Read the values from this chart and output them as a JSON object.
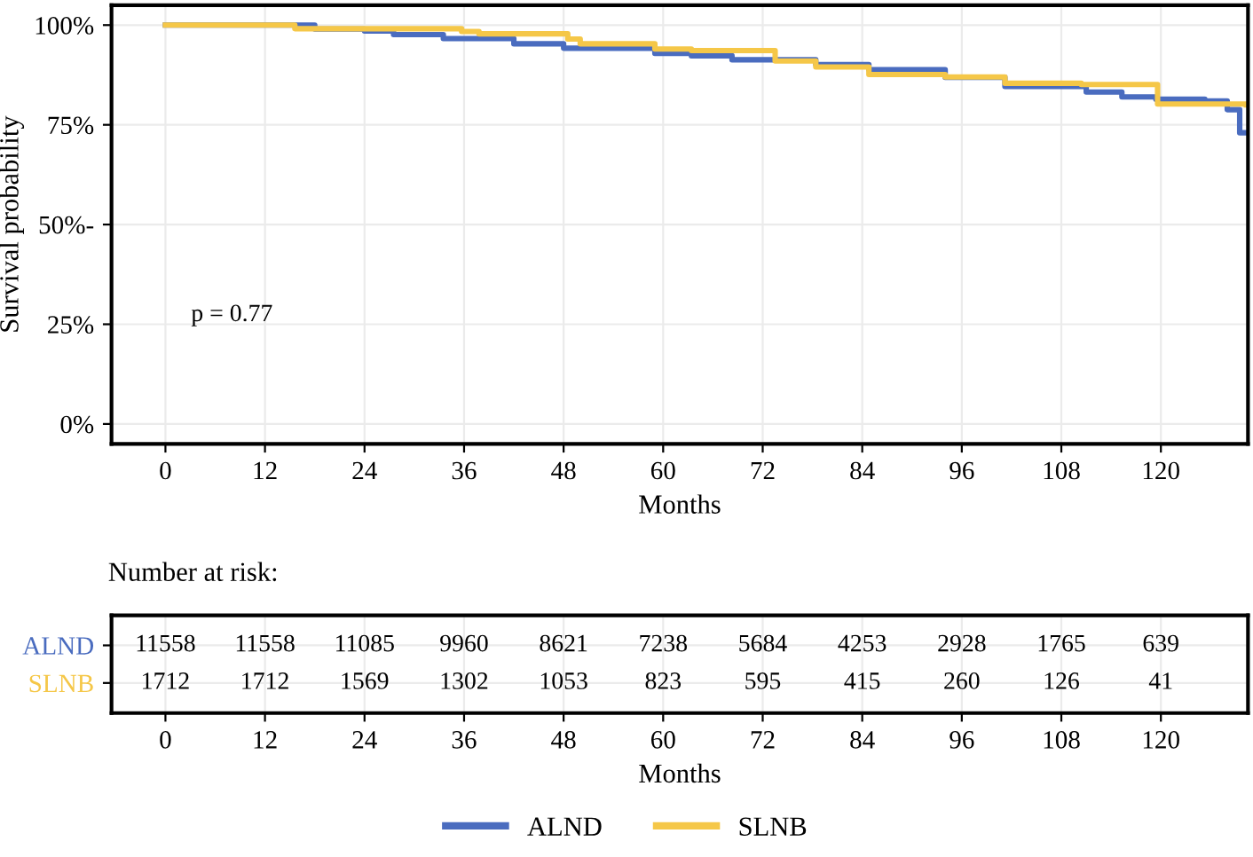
{
  "chart_data": [
    {
      "type": "step",
      "ylabel": "Survival probability",
      "xlabel": "Months",
      "xlim": [
        -6.5,
        130.5
      ],
      "xticks": [
        0,
        12,
        24,
        36,
        48,
        60,
        72,
        84,
        96,
        108,
        120
      ],
      "ylim": [
        -5,
        105
      ],
      "yticks": [
        {
          "value": 0,
          "label": "0%"
        },
        {
          "value": 25,
          "label": "25%"
        },
        {
          "value": 50,
          "label": "50%-"
        },
        {
          "value": 75,
          "label": "75%"
        },
        {
          "value": 100,
          "label": "100%"
        }
      ],
      "grid": true,
      "legend": "bottom",
      "line_style": "solid",
      "marker": "none",
      "annotations": [
        "p = 0.77"
      ],
      "series": [
        {
          "name": "ALND",
          "color": "#4a6cbf",
          "x": [
            0,
            18,
            24,
            27.5,
            33.5,
            42,
            48,
            59,
            63.4,
            68.3,
            78.4,
            84.8,
            94,
            101.2,
            111,
            115.3,
            119.4,
            125.3,
            128,
            129.5,
            130.3
          ],
          "values": [
            100,
            99,
            98.5,
            97.6,
            96.6,
            95.3,
            94.2,
            92.9,
            92.3,
            91.3,
            90.1,
            88.8,
            86.9,
            84.6,
            83.2,
            82,
            81.4,
            81,
            78.8,
            73,
            73
          ]
        },
        {
          "name": "SLNB",
          "color": "#f5c748",
          "x": [
            0,
            15.6,
            35.7,
            37.8,
            48.5,
            50,
            59,
            63.4,
            73.5,
            78.4,
            84.8,
            94,
            101.2,
            110.4,
            119.6,
            130.3
          ],
          "values": [
            100,
            99.1,
            98.4,
            97.8,
            96.5,
            95.3,
            94,
            93.6,
            91,
            89.5,
            87.6,
            87,
            85.4,
            85.1,
            80.2,
            80
          ]
        }
      ]
    },
    {
      "type": "heatmap",
      "title": "Number at risk:",
      "xlabel": "Months",
      "grid": true,
      "data_labels": true,
      "categories": [
        "0",
        "12",
        "24",
        "36",
        "48",
        "60",
        "72",
        "84",
        "96",
        "108",
        "120"
      ],
      "y_categories": [
        "ALND",
        "SLNB"
      ],
      "cells": [
        [
          11558,
          11558,
          11085,
          9960,
          8621,
          7238,
          5684,
          4253,
          2928,
          1765,
          639
        ],
        [
          1712,
          1712,
          1569,
          1302,
          1053,
          823,
          595,
          415,
          260,
          126,
          41
        ]
      ]
    }
  ]
}
